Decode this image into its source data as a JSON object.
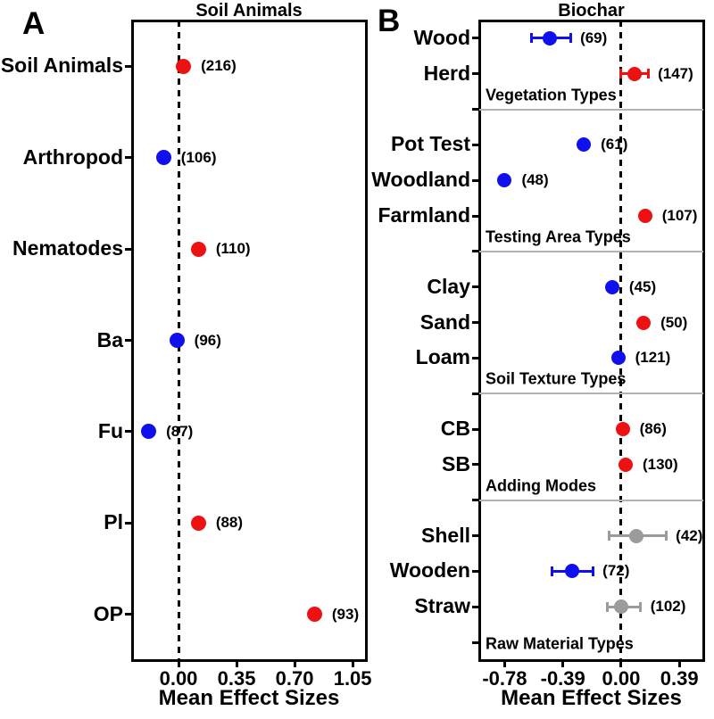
{
  "figure": {
    "panels": [
      {
        "letter": "A"
      },
      {
        "letter": "B"
      }
    ]
  },
  "colors": {
    "red": "#EE1111",
    "blue": "#1010EE",
    "gray": "#9B9B9B",
    "divider": "#B3B3B3",
    "axis": "#000000"
  },
  "chart_data": [
    {
      "type": "scatter",
      "panel": "A",
      "title": "Soil Animals",
      "xlabel": "Mean Effect Sizes",
      "ylabel": "",
      "xlim": [
        -0.28,
        1.13
      ],
      "zero_line": 0,
      "grid": false,
      "xticks": [
        {
          "v": 0.0,
          "label": "0.00"
        },
        {
          "v": 0.35,
          "label": "0.35"
        },
        {
          "v": 0.7,
          "label": "0.70"
        },
        {
          "v": 1.05,
          "label": "1.05"
        }
      ],
      "points": [
        {
          "label": "Soil Animals",
          "value": 0.03,
          "ci": null,
          "n": 216,
          "color": "red"
        },
        {
          "label": "Arthropod",
          "value": -0.09,
          "ci": null,
          "n": 106,
          "color": "blue"
        },
        {
          "label": "Nematodes",
          "value": 0.12,
          "ci": null,
          "n": 110,
          "color": "red"
        },
        {
          "label": "Ba",
          "value": -0.01,
          "ci": null,
          "n": 96,
          "color": "blue"
        },
        {
          "label": "Fu",
          "value": -0.18,
          "ci": null,
          "n": 87,
          "color": "blue"
        },
        {
          "label": "Pl",
          "value": 0.12,
          "ci": null,
          "n": 88,
          "color": "red"
        },
        {
          "label": "OP",
          "value": 0.82,
          "ci": null,
          "n": 93,
          "color": "red"
        }
      ]
    },
    {
      "type": "scatter",
      "panel": "B",
      "title": "Biochar",
      "xlabel": "Mean Effect Sizes",
      "ylabel": "",
      "xlim": [
        -0.95,
        0.55
      ],
      "zero_line": 0,
      "grid": false,
      "xticks": [
        {
          "v": -0.78,
          "label": "-0.78"
        },
        {
          "v": -0.39,
          "label": "-0.39"
        },
        {
          "v": 0.0,
          "label": "0.00"
        },
        {
          "v": 0.39,
          "label": "0.39"
        }
      ],
      "sections": [
        {
          "label": "Vegetation Types",
          "items": [
            {
              "label": "Wood",
              "value": -0.48,
              "ci": [
                -0.6,
                -0.34
              ],
              "n": 69,
              "color": "blue"
            },
            {
              "label": "Herd",
              "value": 0.09,
              "ci": [
                0.0,
                0.18
              ],
              "n": 147,
              "color": "red"
            }
          ]
        },
        {
          "label": "Testing Area Types",
          "items": [
            {
              "label": "Pot Test",
              "value": -0.25,
              "ci": null,
              "n": 61,
              "color": "blue"
            },
            {
              "label": "Woodland",
              "value": -0.78,
              "ci": null,
              "n": 48,
              "color": "blue"
            },
            {
              "label": "Farmland",
              "value": 0.16,
              "ci": null,
              "n": 107,
              "color": "red"
            }
          ]
        },
        {
          "label": "Soil Texture Types",
          "items": [
            {
              "label": "Clay",
              "value": -0.06,
              "ci": null,
              "n": 45,
              "color": "blue"
            },
            {
              "label": "Sand",
              "value": 0.15,
              "ci": null,
              "n": 50,
              "color": "red"
            },
            {
              "label": "Loam",
              "value": -0.02,
              "ci": null,
              "n": 121,
              "color": "blue"
            }
          ]
        },
        {
          "label": "Adding Modes",
          "items": [
            {
              "label": "CB",
              "value": 0.01,
              "ci": null,
              "n": 86,
              "color": "red"
            },
            {
              "label": "SB",
              "value": 0.03,
              "ci": null,
              "n": 130,
              "color": "red"
            }
          ]
        },
        {
          "label": "Raw Material Types",
          "items": [
            {
              "label": "Shell",
              "value": 0.1,
              "ci": [
                -0.08,
                0.3
              ],
              "n": 42,
              "color": "gray"
            },
            {
              "label": "Wooden",
              "value": -0.33,
              "ci": [
                -0.46,
                -0.19
              ],
              "n": 72,
              "color": "blue"
            },
            {
              "label": "Straw",
              "value": 0.0,
              "ci": [
                -0.09,
                0.13
              ],
              "n": 102,
              "color": "gray"
            }
          ]
        }
      ]
    }
  ]
}
